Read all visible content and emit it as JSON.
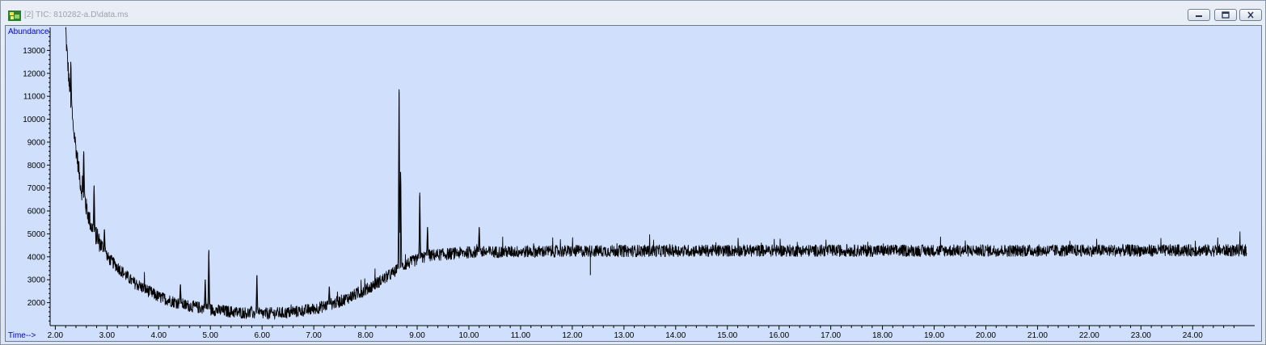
{
  "window": {
    "title": "[2] TIC: 810282-a.D\\data.ms",
    "app_icon": "chromatogram-app-icon",
    "controls": [
      "minimize-icon",
      "restore-icon",
      "close-icon"
    ]
  },
  "chart_data": {
    "type": "line",
    "title": "TIC: 810282-a.D\\data.ms",
    "ylabel": "Abundance",
    "xlabel": "Time-->",
    "xlim": [
      1.9,
      25.2
    ],
    "ylim": [
      1000,
      14000
    ],
    "x_ticks": [
      "2.00",
      "3.00",
      "4.00",
      "5.00",
      "6.00",
      "7.00",
      "8.00",
      "9.00",
      "10.00",
      "11.00",
      "12.00",
      "13.00",
      "14.00",
      "15.00",
      "16.00",
      "17.00",
      "18.00",
      "19.00",
      "20.00",
      "21.00",
      "22.00",
      "23.00",
      "24.00"
    ],
    "y_ticks": [
      "2000",
      "3000",
      "4000",
      "5000",
      "6000",
      "7000",
      "8000",
      "9000",
      "10000",
      "11000",
      "12000",
      "13000"
    ],
    "series": [
      {
        "name": "TIC",
        "baseline_points": [
          [
            2.2,
            13800
          ],
          [
            2.3,
            10500
          ],
          [
            2.5,
            7000
          ],
          [
            2.7,
            5300
          ],
          [
            3.0,
            4000
          ],
          [
            3.5,
            2900
          ],
          [
            4.0,
            2250
          ],
          [
            4.5,
            1900
          ],
          [
            5.0,
            1700
          ],
          [
            5.5,
            1580
          ],
          [
            6.0,
            1520
          ],
          [
            6.5,
            1560
          ],
          [
            7.0,
            1720
          ],
          [
            7.5,
            2050
          ],
          [
            8.0,
            2550
          ],
          [
            8.5,
            3250
          ],
          [
            8.8,
            3700
          ],
          [
            9.2,
            4050
          ],
          [
            10.0,
            4200
          ],
          [
            12.0,
            4250
          ],
          [
            15.0,
            4270
          ],
          [
            20.0,
            4270
          ],
          [
            25.0,
            4280
          ]
        ],
        "noise_amplitude": 260,
        "peaks": [
          [
            2.3,
            12500
          ],
          [
            2.55,
            8600
          ],
          [
            2.75,
            7100
          ],
          [
            2.95,
            5200
          ],
          [
            4.42,
            2800
          ],
          [
            4.9,
            3000
          ],
          [
            4.97,
            4300
          ],
          [
            5.9,
            3200
          ],
          [
            7.3,
            2700
          ],
          [
            8.65,
            11300
          ],
          [
            8.68,
            7700
          ],
          [
            9.05,
            6800
          ],
          [
            9.2,
            5300
          ],
          [
            10.2,
            5300
          ],
          [
            12.35,
            3200
          ]
        ]
      }
    ]
  }
}
